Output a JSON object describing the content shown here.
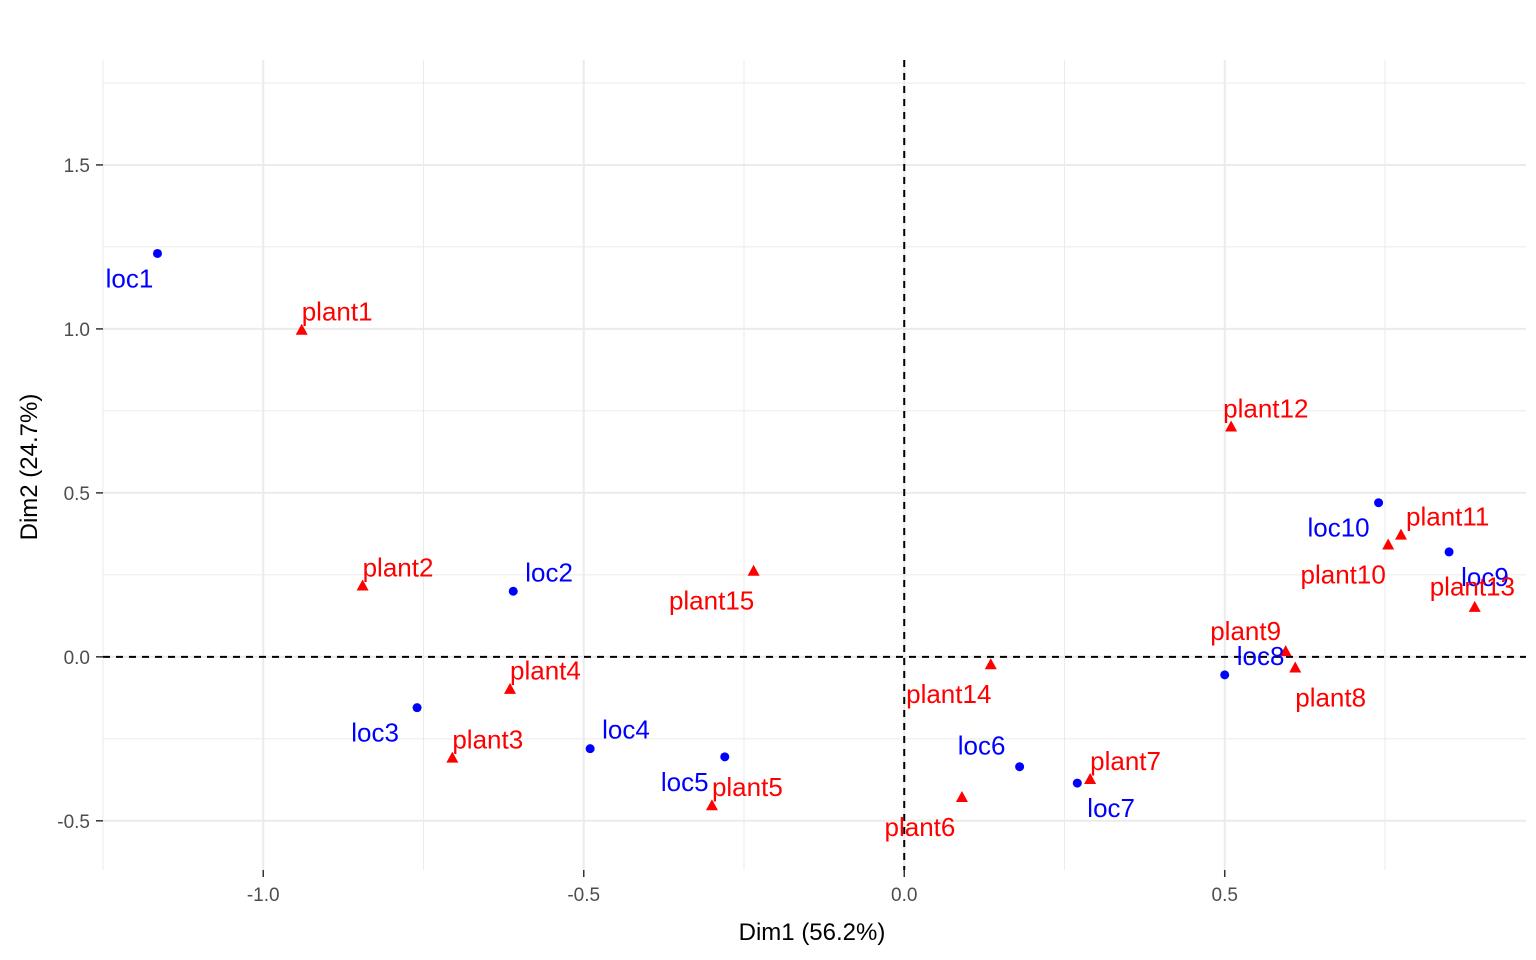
{
  "chart_data": {
    "type": "scatter",
    "xlabel": "Dim1 (56.2%)",
    "ylabel": "Dim2 (24.7%)",
    "xlim": [
      -1.25,
      0.97
    ],
    "ylim": [
      -0.65,
      1.82
    ],
    "x_ticks": [
      -1.0,
      -0.5,
      0.0,
      0.5
    ],
    "x_tick_labels": [
      "-1.0",
      "-0.5",
      "0.0",
      "0.5"
    ],
    "y_ticks": [
      -0.5,
      0.0,
      0.5,
      1.0,
      1.5
    ],
    "y_tick_labels": [
      "-0.5",
      "0.0",
      "0.5",
      "1.0",
      "1.5"
    ],
    "grid": true,
    "reference_lines": {
      "x": 0,
      "y": 0,
      "style": "dashed"
    },
    "colors": {
      "loc": "#0000ff",
      "plant": "#ff0000",
      "grid": "#ebebeb",
      "tick": "#4d4d4d"
    },
    "series": [
      {
        "marker": "circle",
        "color": "#0000ff",
        "points": [
          {
            "label": "loc1",
            "x": -1.165,
            "y": 1.23
          },
          {
            "label": "loc2",
            "x": -0.61,
            "y": 0.2
          },
          {
            "label": "loc3",
            "x": -0.76,
            "y": -0.155
          },
          {
            "label": "loc4",
            "x": -0.49,
            "y": -0.28
          },
          {
            "label": "loc5",
            "x": -0.28,
            "y": -0.305
          },
          {
            "label": "loc6",
            "x": 0.18,
            "y": -0.335
          },
          {
            "label": "loc7",
            "x": 0.27,
            "y": -0.385
          },
          {
            "label": "loc8",
            "x": 0.5,
            "y": -0.055
          },
          {
            "label": "loc9",
            "x": 0.85,
            "y": 0.32
          },
          {
            "label": "loc10",
            "x": 0.74,
            "y": 0.47
          }
        ]
      },
      {
        "marker": "triangle",
        "color": "#ff0000",
        "points": [
          {
            "label": "plant1",
            "x": -0.94,
            "y": 0.995
          },
          {
            "label": "plant2",
            "x": -0.845,
            "y": 0.215
          },
          {
            "label": "plant3",
            "x": -0.705,
            "y": -0.31
          },
          {
            "label": "plant4",
            "x": -0.615,
            "y": -0.1
          },
          {
            "label": "plant5",
            "x": -0.3,
            "y": -0.455
          },
          {
            "label": "plant6",
            "x": 0.09,
            "y": -0.43
          },
          {
            "label": "plant7",
            "x": 0.29,
            "y": -0.375
          },
          {
            "label": "plant8",
            "x": 0.61,
            "y": -0.035
          },
          {
            "label": "plant9",
            "x": 0.595,
            "y": 0.015
          },
          {
            "label": "plant10",
            "x": 0.755,
            "y": 0.34
          },
          {
            "label": "plant11",
            "x": 0.775,
            "y": 0.37
          },
          {
            "label": "plant12",
            "x": 0.51,
            "y": 0.7
          },
          {
            "label": "plant13",
            "x": 0.89,
            "y": 0.15
          },
          {
            "label": "plant14",
            "x": 0.135,
            "y": -0.025
          },
          {
            "label": "plant15",
            "x": -0.235,
            "y": 0.26
          }
        ]
      }
    ]
  }
}
